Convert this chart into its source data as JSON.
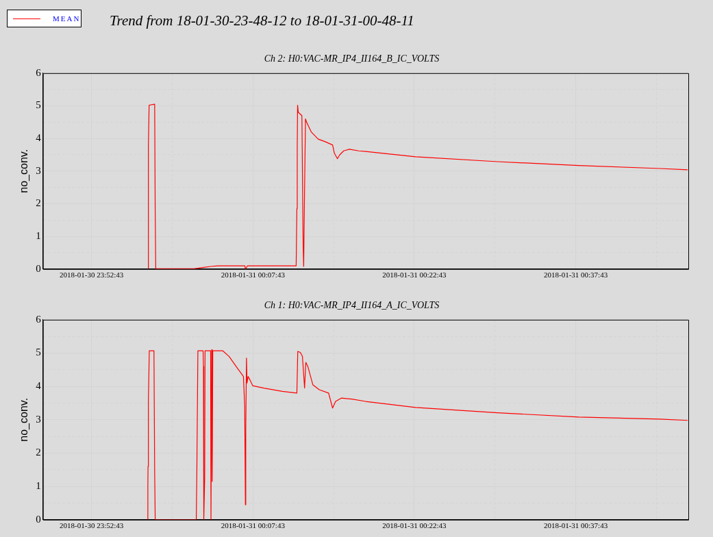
{
  "chart_data": [
    {
      "type": "line",
      "title": "Ch 2: H0:VAC-MR_IP4_II164_B_IC_VOLTS",
      "ylabel": "no_conv.",
      "annotations": [
        "Trend from 18-01-30-23-48-12 to 18-01-31-00-48-11"
      ],
      "legend": "top left",
      "grid": true,
      "marker": "none",
      "xlim": [
        "2018-01-30T23:48:12",
        "2018-01-31T00:48:11"
      ],
      "xticks": [
        {
          "value": "2018-01-30T23:52:43",
          "label": "2018-01-30 23:52:43"
        },
        {
          "value": "2018-01-31T00:00:13",
          "label": null
        },
        {
          "value": "2018-01-31T00:07:43",
          "label": "2018-01-31 00:07:43"
        },
        {
          "value": "2018-01-31T00:15:13",
          "label": null
        },
        {
          "value": "2018-01-31T00:22:43",
          "label": "2018-01-31 00:22:43"
        },
        {
          "value": "2018-01-31T00:30:13",
          "label": null
        },
        {
          "value": "2018-01-31T00:37:43",
          "label": "2018-01-31 00:37:43"
        },
        {
          "value": "2018-01-31T00:45:13",
          "label": null
        }
      ],
      "ylim": [
        0,
        6
      ],
      "yticks": [
        0,
        {
          "value": 0.5,
          "label": null
        },
        1,
        {
          "value": 1.5,
          "label": null
        },
        2,
        {
          "value": 2.5,
          "label": null
        },
        3,
        {
          "value": 3.5,
          "label": null
        },
        4,
        {
          "value": 4.5,
          "label": null
        },
        5,
        {
          "value": 5.5,
          "label": null
        },
        6
      ],
      "x": [
        "2018-01-30T23:57:59",
        "2018-01-30T23:58:00",
        "2018-01-30T23:58:04",
        "2018-01-30T23:58:35",
        "2018-01-30T23:58:38",
        "2018-01-30T23:58:41",
        "2018-01-31T00:02:15",
        "2018-01-31T00:03:10",
        "2018-01-31T00:03:48",
        "2018-01-31T00:04:27",
        "2018-01-31T00:06:58",
        "2018-01-31T00:07:01",
        "2018-01-31T00:07:13",
        "2018-01-31T00:11:44",
        "2018-01-31T00:11:48",
        "2018-01-31T00:11:50",
        "2018-01-31T00:11:52",
        "2018-01-31T00:11:56",
        "2018-01-31T00:12:16",
        "2018-01-31T00:12:23",
        "2018-01-31T00:12:26",
        "2018-01-31T00:12:30",
        "2018-01-31T00:12:36",
        "2018-01-31T00:12:42",
        "2018-01-31T00:13:08",
        "2018-01-31T00:13:47",
        "2018-01-31T00:14:26",
        "2018-01-31T00:15:07",
        "2018-01-31T00:15:17",
        "2018-01-31T00:15:34",
        "2018-01-31T00:15:47",
        "2018-01-31T00:16:09",
        "2018-01-31T00:16:41",
        "2018-01-31T00:17:33",
        "2018-01-31T00:18:11",
        "2018-01-31T00:22:50",
        "2018-01-31T00:30:26",
        "2018-01-31T00:37:59",
        "2018-01-31T00:45:32",
        "2018-01-31T00:48:07"
      ],
      "series": [
        {
          "name": "MEAN",
          "color": "#ff0000",
          "values": [
            0,
            3.75,
            5.02,
            5.05,
            1.75,
            0.01,
            0.01,
            0.05,
            0.08,
            0.1,
            0.1,
            0,
            0.1,
            0.1,
            1.85,
            3.7,
            5.02,
            4.8,
            4.7,
            0.7,
            0.08,
            2.0,
            4.6,
            4.5,
            4.2,
            3.98,
            3.9,
            3.8,
            3.55,
            3.38,
            3.5,
            3.62,
            3.67,
            3.62,
            3.6,
            3.44,
            3.29,
            3.17,
            3.08,
            3.04
          ]
        }
      ]
    },
    {
      "type": "line",
      "title": "Ch 1: H0:VAC-MR_IP4_II164_A_IC_VOLTS",
      "ylabel": "no_conv.",
      "grid": true,
      "marker": "none",
      "xlim": [
        "2018-01-30T23:48:12",
        "2018-01-31T00:48:11"
      ],
      "xticks": [
        {
          "value": "2018-01-30T23:52:43",
          "label": "2018-01-30 23:52:43"
        },
        {
          "value": "2018-01-31T00:00:13",
          "label": null
        },
        {
          "value": "2018-01-31T00:07:43",
          "label": "2018-01-31 00:07:43"
        },
        {
          "value": "2018-01-31T00:15:13",
          "label": null
        },
        {
          "value": "2018-01-31T00:22:43",
          "label": "2018-01-31 00:22:43"
        },
        {
          "value": "2018-01-31T00:30:13",
          "label": null
        },
        {
          "value": "2018-01-31T00:37:43",
          "label": "2018-01-31 00:37:43"
        },
        {
          "value": "2018-01-31T00:45:13",
          "label": null
        }
      ],
      "ylim": [
        0,
        6
      ],
      "yticks": [
        0,
        {
          "value": 0.5,
          "label": null
        },
        1,
        {
          "value": 1.5,
          "label": null
        },
        2,
        {
          "value": 2.5,
          "label": null
        },
        3,
        {
          "value": 3.5,
          "label": null
        },
        4,
        {
          "value": 4.5,
          "label": null
        },
        5,
        {
          "value": 5.5,
          "label": null
        },
        6
      ],
      "x": [
        "2018-01-30T23:57:56",
        "2018-01-30T23:57:57",
        "2018-01-30T23:57:58",
        "2018-01-30T23:58:00",
        "2018-01-30T23:58:05",
        "2018-01-30T23:58:31",
        "2018-01-30T23:58:35",
        "2018-01-30T23:58:38",
        "2018-01-31T00:02:27",
        "2018-01-31T00:02:30",
        "2018-01-31T00:02:36",
        "2018-01-31T00:03:05",
        "2018-01-31T00:03:07",
        "2018-01-31T00:03:09",
        "2018-01-31T00:03:14",
        "2018-01-31T00:03:16",
        "2018-01-31T00:03:47",
        "2018-01-31T00:03:49",
        "2018-01-31T00:03:53",
        "2018-01-31T00:03:56",
        "2018-01-31T00:03:59",
        "2018-01-31T00:04:54",
        "2018-01-31T00:05:30",
        "2018-01-31T00:06:09",
        "2018-01-31T00:06:50",
        "2018-01-31T00:06:57",
        "2018-01-31T00:07:01",
        "2018-01-31T00:07:03",
        "2018-01-31T00:07:07",
        "2018-01-31T00:07:10",
        "2018-01-31T00:07:16",
        "2018-01-31T00:07:26",
        "2018-01-31T00:07:42",
        "2018-01-31T00:08:44",
        "2018-01-31T00:10:27",
        "2018-01-31T00:11:48",
        "2018-01-31T00:11:53",
        "2018-01-31T00:12:07",
        "2018-01-31T00:12:19",
        "2018-01-31T00:12:31",
        "2018-01-31T00:12:38",
        "2018-01-31T00:12:49",
        "2018-01-31T00:13:17",
        "2018-01-31T00:13:53",
        "2018-01-31T00:14:45",
        "2018-01-31T00:15:07",
        "2018-01-31T00:15:24",
        "2018-01-31T00:15:56",
        "2018-01-31T00:16:54",
        "2018-01-31T00:18:11",
        "2018-01-31T00:22:50",
        "2018-01-31T00:30:26",
        "2018-01-31T00:37:59",
        "2018-01-31T00:45:32",
        "2018-01-31T00:48:07"
      ],
      "series": [
        {
          "color": "#ff0000",
          "values": [
            0,
            1.0,
            1.6,
            3.55,
            5.07,
            5.07,
            1.45,
            0,
            0,
            1.3,
            5.07,
            5.07,
            4.6,
            0,
            1.3,
            5.07,
            5.07,
            0,
            5.1,
            1.15,
            5.07,
            5.07,
            4.9,
            4.6,
            4.3,
            3.4,
            0.45,
            2.7,
            4.85,
            4.1,
            4.3,
            4.2,
            4.02,
            3.95,
            3.85,
            3.8,
            5.05,
            5.02,
            4.9,
            3.95,
            4.72,
            4.6,
            4.05,
            3.9,
            3.8,
            3.35,
            3.55,
            3.65,
            3.62,
            3.55,
            3.37,
            3.21,
            3.08,
            3.02,
            2.98
          ]
        }
      ]
    }
  ]
}
